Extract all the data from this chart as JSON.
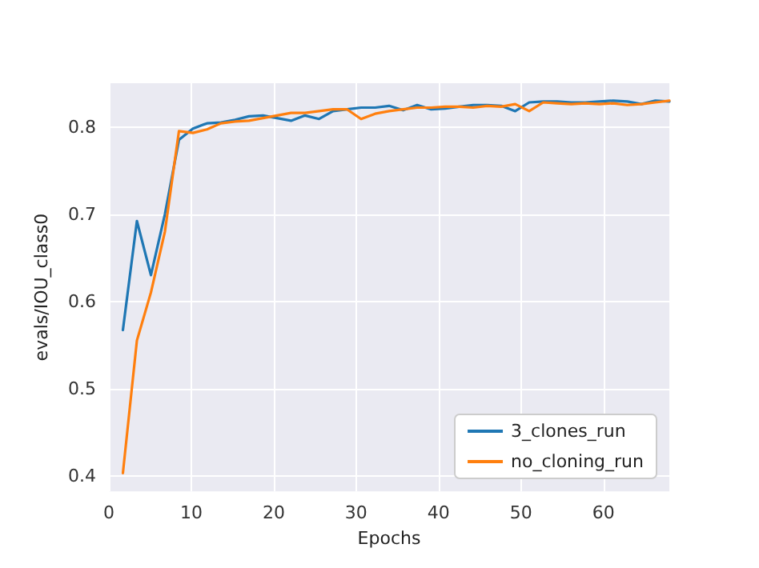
{
  "chart_data": {
    "type": "line",
    "xlabel": "Epochs",
    "ylabel": "evals/IOU_class0",
    "xlim": [
      0,
      68
    ],
    "ylim": [
      0.382,
      0.85
    ],
    "xticks": [
      0,
      10,
      20,
      30,
      40,
      50,
      60
    ],
    "yticks": [
      0.4,
      0.5,
      0.6,
      0.7,
      0.8
    ],
    "grid": true,
    "legend": "bottom right",
    "marker": "none",
    "line_style": "solid",
    "x": [
      1.7,
      3.4,
      5.1,
      6.8,
      8.5,
      10.2,
      11.9,
      13.6,
      15.3,
      17,
      18.7,
      20.4,
      22.1,
      23.8,
      25.5,
      27.2,
      28.9,
      30.6,
      32.3,
      34,
      35.7,
      37.4,
      39.1,
      40.8,
      42.5,
      44.2,
      45.9,
      47.6,
      49.3,
      51,
      52.7,
      54.4,
      56.1,
      57.8,
      59.5,
      61.2,
      62.9,
      64.6,
      66.3,
      68
    ],
    "series": [
      {
        "name": "3_clones_run",
        "color": "#1f77b4",
        "values": [
          0.567,
          0.692,
          0.63,
          0.7,
          0.785,
          0.798,
          0.804,
          0.805,
          0.808,
          0.812,
          0.813,
          0.81,
          0.807,
          0.813,
          0.809,
          0.818,
          0.82,
          0.822,
          0.822,
          0.824,
          0.819,
          0.825,
          0.82,
          0.821,
          0.823,
          0.825,
          0.825,
          0.824,
          0.818,
          0.828,
          0.829,
          0.829,
          0.828,
          0.828,
          0.829,
          0.83,
          0.829,
          0.826,
          0.83,
          0.829
        ]
      },
      {
        "name": "no_cloning_run",
        "color": "#ff7f0e",
        "values": [
          0.403,
          0.555,
          0.61,
          0.68,
          0.795,
          0.793,
          0.797,
          0.804,
          0.806,
          0.807,
          0.81,
          0.813,
          0.816,
          0.816,
          0.818,
          0.82,
          0.82,
          0.809,
          0.815,
          0.818,
          0.82,
          0.822,
          0.822,
          0.823,
          0.823,
          0.822,
          0.824,
          0.823,
          0.826,
          0.818,
          0.828,
          0.827,
          0.826,
          0.827,
          0.826,
          0.827,
          0.825,
          0.826,
          0.828,
          0.83
        ]
      }
    ]
  }
}
